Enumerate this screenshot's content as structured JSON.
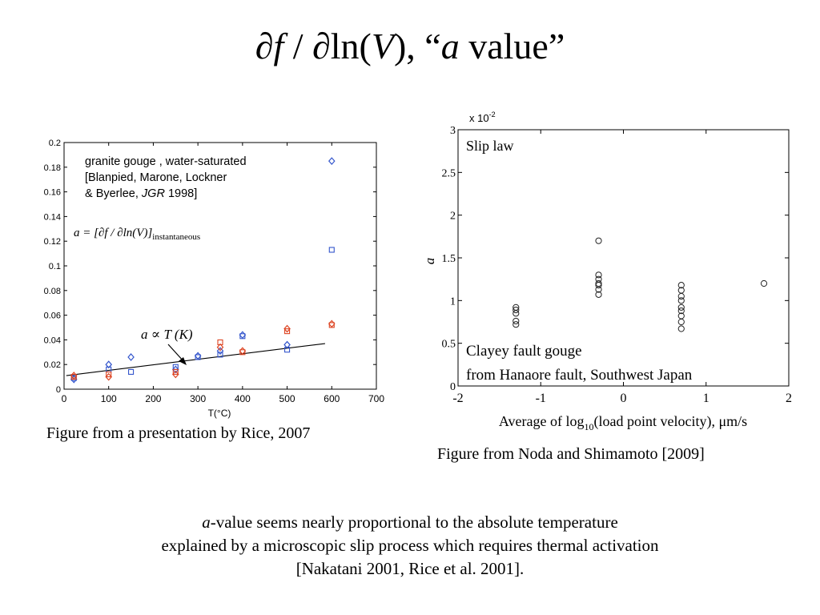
{
  "slide": {
    "title": {
      "p1": "∂",
      "p2": "f",
      "p3": " / ∂ln(",
      "p4": "V",
      "p5": "), “",
      "p6": "a",
      "p7": " value”"
    },
    "left_caption": "Figure from a presentation by Rice, 2007",
    "right_caption": "Figure from Noda and Shimamoto [2009]",
    "footer": {
      "line1_italic": "a",
      "line1_rest": "-value seems nearly proportional to the absolute temperature",
      "line2": "explained by a microscopic slip process which requires thermal activation",
      "line3": "[Nakatani 2001, Rice et al. 2001]."
    }
  },
  "chart_data": [
    {
      "type": "scatter",
      "xlabel": "T(°C)",
      "ylabel": "",
      "xlim": [
        0,
        700
      ],
      "ylim": [
        0,
        0.2
      ],
      "x_ticks": [
        "0",
        "100",
        "200",
        "300",
        "400",
        "500",
        "600",
        "700"
      ],
      "y_ticks": [
        "0",
        "0.02",
        "0.04",
        "0.06",
        "0.08",
        "0.1",
        "0.12",
        "0.14",
        "0.16",
        "0.18",
        "0.2"
      ],
      "grid": false,
      "annotations": {
        "legend_line1": "granite gouge , water-saturated",
        "legend_line2": "[Blanpied, Marone, Lockner",
        "legend_line3_a": "& Byerlee, ",
        "legend_line3_b": "JGR",
        "legend_line3_c": " 1998]",
        "formula": "a = [∂f / ∂ln(V)]",
        "formula_sub": "instantaneous",
        "proportional": "a ∝ T (K)"
      },
      "fit_line": {
        "x": [
          5,
          585
        ],
        "y": [
          0.011,
          0.037
        ]
      },
      "series": [
        {
          "marker": "diamond",
          "color": "#3355cc",
          "points": [
            [
              22,
              0.008
            ],
            [
              100,
              0.02
            ],
            [
              150,
              0.026
            ],
            [
              250,
              0.016
            ],
            [
              300,
              0.027
            ],
            [
              350,
              0.031
            ],
            [
              400,
              0.044
            ],
            [
              500,
              0.036
            ],
            [
              600,
              0.185
            ]
          ]
        },
        {
          "marker": "square",
          "color": "#3355cc",
          "points": [
            [
              22,
              0.009
            ],
            [
              100,
              0.016
            ],
            [
              150,
              0.014
            ],
            [
              250,
              0.018
            ],
            [
              300,
              0.026
            ],
            [
              350,
              0.028
            ],
            [
              400,
              0.043
            ],
            [
              500,
              0.032
            ],
            [
              600,
              0.113
            ]
          ]
        },
        {
          "marker": "diamond",
          "color": "#dd4422",
          "points": [
            [
              22,
              0.011
            ],
            [
              100,
              0.01
            ],
            [
              250,
              0.012
            ],
            [
              350,
              0.034
            ],
            [
              400,
              0.031
            ],
            [
              500,
              0.049
            ],
            [
              600,
              0.053
            ]
          ]
        },
        {
          "marker": "square",
          "color": "#dd4422",
          "points": [
            [
              22,
              0.01
            ],
            [
              100,
              0.012
            ],
            [
              250,
              0.014
            ],
            [
              350,
              0.038
            ],
            [
              400,
              0.03
            ],
            [
              500,
              0.047
            ],
            [
              600,
              0.052
            ]
          ]
        }
      ]
    },
    {
      "type": "scatter",
      "xlabel_a": "Average of log",
      "xlabel_sub": "10",
      "xlabel_b": "(load point velocity), μm/s",
      "ylabel": "a",
      "multiplier": "x 10",
      "multiplier_exp": "-2",
      "xlim": [
        -2,
        2
      ],
      "ylim": [
        0,
        3
      ],
      "x_ticks": [
        "-2",
        "-1",
        "0",
        "1",
        "2"
      ],
      "y_ticks": [
        "0",
        "0.5",
        "1",
        "1.5",
        "2",
        "2.5",
        "3"
      ],
      "grid": false,
      "legend": "Slip law",
      "note_line1": "Clayey fault gouge",
      "note_line2": "from Hanaore fault, Southwest Japan",
      "points": [
        [
          -1.3,
          0.72
        ],
        [
          -1.3,
          0.76
        ],
        [
          -1.3,
          0.85
        ],
        [
          -1.3,
          0.89
        ],
        [
          -1.3,
          0.92
        ],
        [
          -0.3,
          1.07
        ],
        [
          -0.3,
          1.13
        ],
        [
          -0.3,
          1.18
        ],
        [
          -0.3,
          1.2
        ],
        [
          -0.3,
          1.25
        ],
        [
          -0.3,
          1.3
        ],
        [
          -0.3,
          1.7
        ],
        [
          0.7,
          0.67
        ],
        [
          0.7,
          0.75
        ],
        [
          0.7,
          0.82
        ],
        [
          0.7,
          0.88
        ],
        [
          0.7,
          0.92
        ],
        [
          0.7,
          1.0
        ],
        [
          0.7,
          1.05
        ],
        [
          0.7,
          1.12
        ],
        [
          0.7,
          1.18
        ],
        [
          1.7,
          1.2
        ]
      ]
    }
  ]
}
